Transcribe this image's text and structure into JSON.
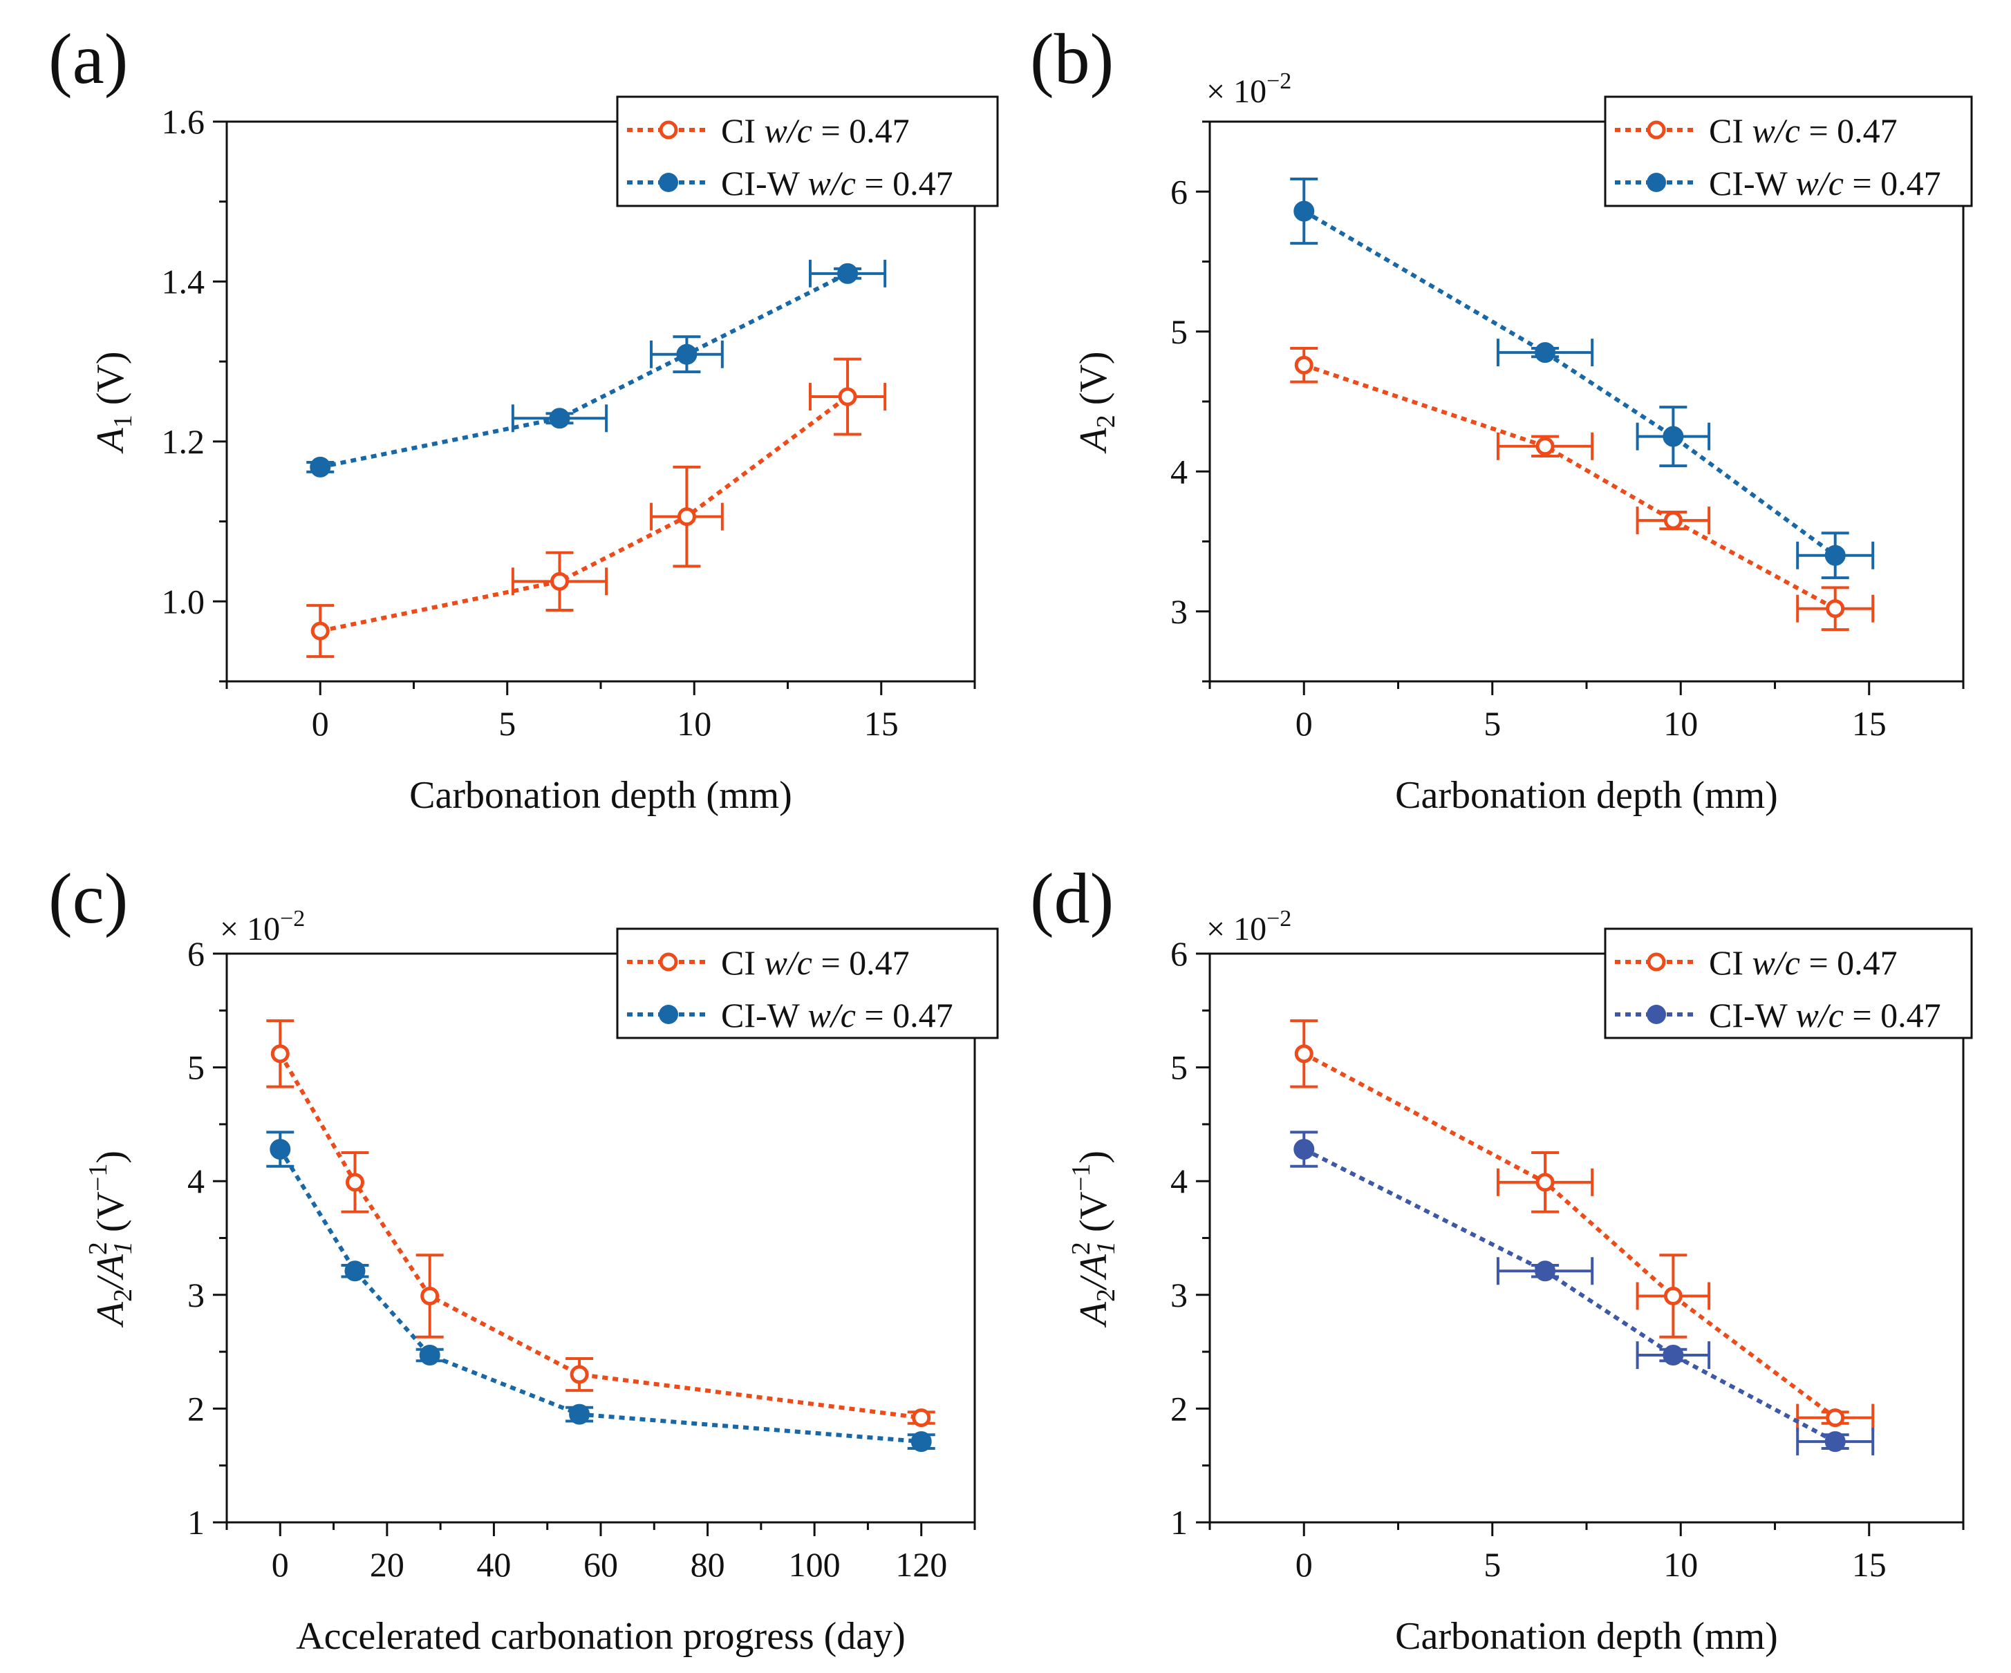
{
  "colors": {
    "ci": "#EE4B1A",
    "ciw": "#1868A8",
    "ciw_d": "#3E58A8",
    "axis": "#111111"
  },
  "chart_data": [
    {
      "type": "line",
      "panel_label": "(a)",
      "title": "",
      "xlabel": "Carbonation depth (mm)",
      "ylabel_main": "A",
      "ylabel_sub": "1",
      "ylabel_tail": " (V)",
      "multiplier_text": "",
      "multiplier_exp": "",
      "xlim": [
        -2.5,
        17.5
      ],
      "ylim": [
        0.9,
        1.6
      ],
      "xticks": [
        0,
        5,
        10,
        15
      ],
      "xtick_labels": [
        "0",
        "5",
        "10",
        "15"
      ],
      "yticks": [
        1.0,
        1.2,
        1.4,
        1.6
      ],
      "ytick_labels": [
        "1.0",
        "1.2",
        "1.4",
        "1.6"
      ],
      "legend": [
        {
          "prefix": "CI ",
          "italic": "w/c",
          "suffix": " = 0.47"
        },
        {
          "prefix": "CI-W ",
          "italic": "w/c",
          "suffix": " = 0.47"
        }
      ],
      "series": [
        {
          "name": "CI w/c = 0.47",
          "marker": "open",
          "color_key": "ci",
          "x": [
            0,
            6.4,
            9.8,
            14.1
          ],
          "y": [
            0.963,
            1.025,
            1.106,
            1.256
          ],
          "xerr": [
            0,
            1.25,
            0.95,
            1.0
          ],
          "yerr": [
            0.032,
            0.036,
            0.062,
            0.047
          ]
        },
        {
          "name": "CI-W w/c = 0.47",
          "marker": "filled",
          "color_key": "ciw",
          "x": [
            0,
            6.4,
            9.8,
            14.1
          ],
          "y": [
            1.168,
            1.229,
            1.309,
            1.41
          ],
          "xerr": [
            0,
            1.25,
            0.95,
            1.0
          ],
          "yerr": [
            0.006,
            0.006,
            0.022,
            0.006
          ]
        }
      ]
    },
    {
      "type": "line",
      "panel_label": "(b)",
      "title": "",
      "xlabel": "Carbonation depth (mm)",
      "ylabel_main": "A",
      "ylabel_sub": "2",
      "ylabel_tail": " (V)",
      "multiplier_text": "× 10",
      "multiplier_exp": "−2",
      "xlim": [
        -2.5,
        17.5
      ],
      "ylim": [
        2.5,
        6.5
      ],
      "xticks": [
        0,
        5,
        10,
        15
      ],
      "xtick_labels": [
        "0",
        "5",
        "10",
        "15"
      ],
      "yticks": [
        3,
        4,
        5,
        6
      ],
      "ytick_labels": [
        "3",
        "4",
        "5",
        "6"
      ],
      "legend": [
        {
          "prefix": "CI ",
          "italic": "w/c",
          "suffix": " = 0.47"
        },
        {
          "prefix": "CI-W ",
          "italic": "w/c",
          "suffix": " = 0.47"
        }
      ],
      "series": [
        {
          "name": "CI w/c = 0.47",
          "marker": "open",
          "color_key": "ci",
          "x": [
            0,
            6.4,
            9.8,
            14.1
          ],
          "y": [
            4.76,
            4.18,
            3.65,
            3.02
          ],
          "xerr": [
            0,
            1.25,
            0.95,
            1.0
          ],
          "yerr": [
            0.12,
            0.07,
            0.06,
            0.15
          ]
        },
        {
          "name": "CI-W w/c = 0.47",
          "marker": "filled",
          "color_key": "ciw",
          "x": [
            0,
            6.4,
            9.8,
            14.1
          ],
          "y": [
            5.86,
            4.85,
            4.25,
            3.4
          ],
          "xerr": [
            0,
            1.25,
            0.95,
            1.0
          ],
          "yerr": [
            0.23,
            0.03,
            0.21,
            0.16
          ]
        }
      ]
    },
    {
      "type": "line",
      "panel_label": "(c)",
      "title": "",
      "xlabel": "Accelerated carbonation progress (day)",
      "ylabel_main": "A",
      "ylabel_sub": "2",
      "ylabel_tail": "",
      "ylabel_mid": "/A",
      "ylabel_sub2": "1",
      "ylabel_sup2": "2",
      "ylabel_end": " (V",
      "ylabel_end_sup": "−1",
      "ylabel_close": ")",
      "multiplier_text": "× 10",
      "multiplier_exp": "−2",
      "xlim": [
        -10,
        130
      ],
      "ylim": [
        1,
        6
      ],
      "xticks": [
        0,
        20,
        40,
        60,
        80,
        100,
        120
      ],
      "xtick_labels": [
        "0",
        "20",
        "40",
        "60",
        "80",
        "100",
        "120"
      ],
      "yticks": [
        1,
        2,
        3,
        4,
        5,
        6
      ],
      "ytick_labels": [
        "1",
        "2",
        "3",
        "4",
        "5",
        "6"
      ],
      "legend": [
        {
          "prefix": "CI ",
          "italic": "w/c",
          "suffix": " = 0.47"
        },
        {
          "prefix": "CI-W ",
          "italic": "w/c",
          "suffix": " = 0.47"
        }
      ],
      "series": [
        {
          "name": "CI w/c = 0.47",
          "marker": "open",
          "color_key": "ci",
          "x": [
            0,
            14,
            28,
            56,
            120
          ],
          "y": [
            5.12,
            3.99,
            2.99,
            2.3,
            1.92
          ],
          "xerr": [
            0,
            0,
            0,
            0,
            0
          ],
          "yerr": [
            0.29,
            0.26,
            0.36,
            0.14,
            0.05
          ]
        },
        {
          "name": "CI-W w/c = 0.47",
          "marker": "filled",
          "color_key": "ciw",
          "x": [
            0,
            14,
            28,
            56,
            120
          ],
          "y": [
            4.28,
            3.21,
            2.47,
            1.95,
            1.71
          ],
          "xerr": [
            0,
            0,
            0,
            0,
            0
          ],
          "yerr": [
            0.15,
            0.05,
            0.05,
            0.06,
            0.06
          ]
        }
      ]
    },
    {
      "type": "line",
      "panel_label": "(d)",
      "title": "",
      "xlabel": "Carbonation depth (mm)",
      "ylabel_main": "A",
      "ylabel_sub": "2",
      "ylabel_tail": "",
      "ylabel_mid": "/A",
      "ylabel_sub2": "1",
      "ylabel_sup2": "2",
      "ylabel_end": " (V",
      "ylabel_end_sup": "−1",
      "ylabel_close": ")",
      "multiplier_text": "× 10",
      "multiplier_exp": "−2",
      "xlim": [
        -2.5,
        17.5
      ],
      "ylim": [
        1,
        6
      ],
      "xticks": [
        0,
        5,
        10,
        15
      ],
      "xtick_labels": [
        "0",
        "5",
        "10",
        "15"
      ],
      "yticks": [
        1,
        2,
        3,
        4,
        5,
        6
      ],
      "ytick_labels": [
        "1",
        "2",
        "3",
        "4",
        "5",
        "6"
      ],
      "legend": [
        {
          "prefix": "CI ",
          "italic": "w/c",
          "suffix": " = 0.47"
        },
        {
          "prefix": "CI-W ",
          "italic": "w/c",
          "suffix": " = 0.47"
        }
      ],
      "series": [
        {
          "name": "CI w/c = 0.47",
          "marker": "open",
          "color_key": "ci",
          "x": [
            0,
            6.4,
            9.8,
            14.1
          ],
          "y": [
            5.12,
            3.99,
            2.99,
            1.92
          ],
          "xerr": [
            0,
            1.25,
            0.95,
            1.0
          ],
          "yerr": [
            0.29,
            0.26,
            0.36,
            0.05
          ]
        },
        {
          "name": "CI-W w/c = 0.47",
          "marker": "filled",
          "color_key": "ciw_d",
          "x": [
            0,
            6.4,
            9.8,
            14.1
          ],
          "y": [
            4.28,
            3.21,
            2.47,
            1.71
          ],
          "xerr": [
            0,
            1.25,
            0.95,
            1.0
          ],
          "yerr": [
            0.15,
            0.05,
            0.05,
            0.06
          ]
        }
      ]
    }
  ]
}
